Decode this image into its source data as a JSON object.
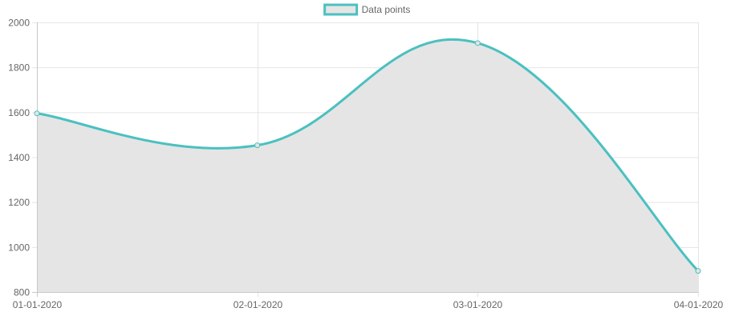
{
  "chart_data": {
    "type": "area",
    "categories": [
      "01-01-2020",
      "02-01-2020",
      "03-01-2020",
      "04-01-2020"
    ],
    "series": [
      {
        "name": "Data points",
        "values": [
          1595,
          1453,
          1908,
          894
        ],
        "line_color": "#4bc0c0",
        "fill_color": "#e5e5e5"
      }
    ],
    "y_ticks": [
      800,
      1000,
      1200,
      1400,
      1600,
      1800,
      2000
    ],
    "ylim": [
      800,
      2000
    ],
    "grid": true,
    "legend_position": "top-center",
    "grid_color": "#e5e5e5",
    "axis_color": "#c8c8c8",
    "tick_label_color": "#666666"
  }
}
